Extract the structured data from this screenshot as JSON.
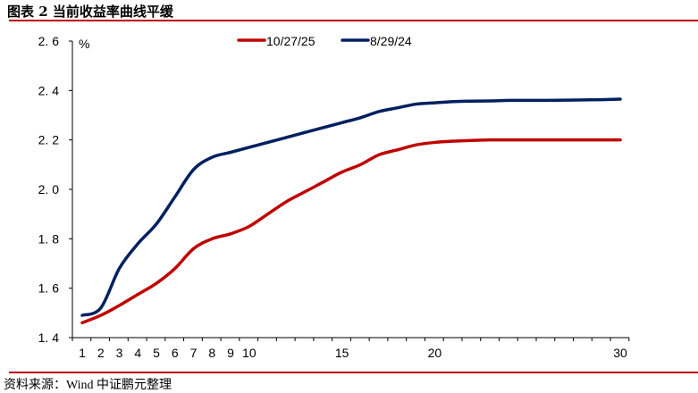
{
  "title": "图表 2  当前收益率曲线平缓",
  "source": "资料来源：Wind 中证鹏元整理",
  "chart_data": {
    "type": "line",
    "title": "",
    "ylabel": "%",
    "xlabel": "",
    "ylim": [
      1.4,
      2.6
    ],
    "yticks": [
      "1.4",
      "1.6",
      "1.8",
      "2.0",
      "2.2",
      "2.4",
      "2.6"
    ],
    "x": [
      1,
      2,
      3,
      4,
      5,
      6,
      7,
      8,
      9,
      10,
      11,
      12,
      13,
      14,
      15,
      16,
      17,
      18,
      19,
      20,
      21,
      22,
      23,
      24,
      25,
      26,
      27,
      28,
      29,
      30
    ],
    "xtick_labels": [
      "1",
      "2",
      "3",
      "4",
      "5",
      "6",
      "7",
      "8",
      "9",
      "10",
      "15",
      "20",
      "30"
    ],
    "grid": false,
    "legend_position": "top",
    "series": [
      {
        "name": "10/27/25",
        "color": "#c00000",
        "values": [
          1.46,
          1.49,
          1.53,
          1.575,
          1.62,
          1.68,
          1.76,
          1.8,
          1.82,
          1.85,
          1.9,
          1.95,
          1.99,
          2.03,
          2.07,
          2.1,
          2.14,
          2.16,
          2.18,
          2.19,
          2.195,
          2.198,
          2.2,
          2.2,
          2.2,
          2.2,
          2.2,
          2.2,
          2.2,
          2.2
        ]
      },
      {
        "name": "8/29/24",
        "color": "#002060",
        "values": [
          1.49,
          1.52,
          1.68,
          1.78,
          1.86,
          1.97,
          2.08,
          2.13,
          2.15,
          2.17,
          2.19,
          2.21,
          2.23,
          2.25,
          2.27,
          2.29,
          2.315,
          2.33,
          2.345,
          2.35,
          2.355,
          2.357,
          2.358,
          2.36,
          2.36,
          2.36,
          2.361,
          2.362,
          2.363,
          2.365
        ]
      }
    ]
  }
}
